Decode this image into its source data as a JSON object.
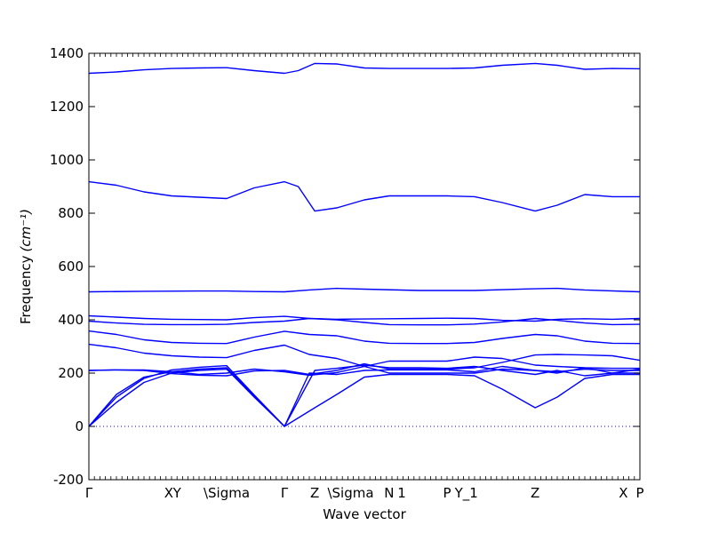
{
  "chart_data": {
    "type": "line",
    "title": "",
    "xlabel": "Wave vector",
    "ylabel": "Frequency",
    "ylabel_unit": "(cm⁻¹)",
    "ylim": [
      -200,
      1400
    ],
    "yticks": [
      -200,
      0,
      200,
      400,
      600,
      800,
      1000,
      1200,
      1400
    ],
    "grid": false,
    "legend": "none",
    "zero_line": {
      "value": 0,
      "style": "dotted",
      "color": "#0000ff"
    },
    "line_color": "#0000ff",
    "x_path_length": 10,
    "high_symmetry_points": [
      {
        "label": "Γ",
        "x": 0
      },
      {
        "label": "X",
        "x": 1.45
      },
      {
        "label": "Y",
        "x": 1.6
      },
      {
        "label": "\\Sigma",
        "x": 2.5
      },
      {
        "label": "Γ",
        "x": 3.55
      },
      {
        "label": "Z",
        "x": 4.1
      },
      {
        "label": "\\Sigma",
        "x": 4.75
      },
      {
        "label": "N",
        "x": 5.45
      },
      {
        "label": "1",
        "x": 5.6
      },
      {
        "label": "P",
        "x": 6.5
      },
      {
        "label": "Y_1",
        "x": 6.85
      },
      {
        "label": "Z",
        "x": 8.1
      },
      {
        "label": "X",
        "x": 9.7
      },
      {
        "label": "P",
        "x": 10
      }
    ],
    "series": [
      {
        "x": [
          0,
          0.5,
          1,
          1.5,
          2,
          2.5,
          3,
          3.55,
          3.8,
          4.1,
          4.5,
          5,
          5.45,
          6,
          6.5,
          7,
          7.5,
          8.1,
          8.5,
          9,
          9.5,
          10
        ],
        "values": [
          1325,
          1330,
          1338,
          1343,
          1345,
          1346,
          1335,
          1325,
          1335,
          1362,
          1360,
          1345,
          1343,
          1343,
          1343,
          1345,
          1355,
          1362,
          1355,
          1340,
          1343,
          1342
        ]
      },
      {
        "x": [
          0,
          0.5,
          1,
          1.5,
          2,
          2.5,
          3,
          3.55,
          3.8,
          4.1,
          4.5,
          5,
          5.45,
          6,
          6.5,
          7,
          7.5,
          8.1,
          8.5,
          9,
          9.5,
          10
        ],
        "values": [
          918,
          905,
          880,
          865,
          860,
          855,
          895,
          918,
          900,
          808,
          820,
          850,
          865,
          865,
          865,
          862,
          840,
          808,
          830,
          870,
          862,
          862
        ]
      },
      {
        "x": [
          0,
          1,
          2,
          2.5,
          3,
          3.55,
          4,
          4.5,
          5,
          6,
          7,
          8,
          8.5,
          9,
          10
        ],
        "values": [
          505,
          507,
          508,
          508,
          506,
          505,
          512,
          518,
          515,
          510,
          510,
          516,
          518,
          512,
          505
        ]
      },
      {
        "x": [
          0,
          0.5,
          1,
          1.5,
          2,
          2.5,
          3,
          3.55,
          4,
          4.5,
          5,
          5.45,
          6,
          6.5,
          7,
          7.5,
          8.1,
          8.5,
          9,
          9.5,
          10
        ],
        "values": [
          415,
          410,
          405,
          402,
          401,
          400,
          408,
          413,
          405,
          402,
          403,
          404,
          405,
          406,
          405,
          398,
          395,
          402,
          404,
          402,
          405
        ]
      },
      {
        "x": [
          0,
          0.5,
          1,
          1.5,
          2,
          2.5,
          3,
          3.55,
          4,
          4.5,
          5,
          5.45,
          6,
          6.5,
          7,
          7.5,
          8.1,
          8.5,
          9,
          9.5,
          10
        ],
        "values": [
          395,
          388,
          383,
          382,
          382,
          383,
          390,
          395,
          405,
          400,
          390,
          382,
          381,
          381,
          384,
          392,
          405,
          398,
          388,
          382,
          383
        ]
      },
      {
        "x": [
          0,
          0.5,
          1,
          1.5,
          2,
          2.5,
          3,
          3.55,
          4,
          4.5,
          5,
          5.45,
          6,
          6.5,
          7,
          7.5,
          8.1,
          8.5,
          9,
          9.5,
          10
        ],
        "values": [
          358,
          345,
          325,
          315,
          312,
          311,
          335,
          357,
          345,
          340,
          320,
          312,
          311,
          311,
          315,
          330,
          345,
          340,
          320,
          312,
          311
        ]
      },
      {
        "x": [
          0,
          0.5,
          1,
          1.5,
          2,
          2.5,
          3,
          3.55,
          4,
          4.5,
          5,
          5.45,
          6,
          6.5,
          7,
          7.5,
          8.1,
          8.5,
          9,
          9.5,
          10
        ],
        "values": [
          308,
          295,
          275,
          265,
          260,
          258,
          285,
          305,
          270,
          255,
          225,
          245,
          245,
          245,
          260,
          255,
          230,
          225,
          220,
          218,
          218
        ]
      },
      {
        "x": [
          0,
          0.5,
          1,
          1.5,
          2,
          2.5,
          3,
          3.55,
          4,
          4.5,
          5,
          5.45,
          6,
          6.5,
          7,
          7.5,
          8.1,
          8.5,
          9,
          9.5,
          10
        ],
        "values": [
          210,
          212,
          210,
          198,
          192,
          190,
          208,
          210,
          195,
          210,
          235,
          215,
          215,
          215,
          220,
          240,
          268,
          270,
          268,
          265,
          248
        ]
      },
      {
        "x": [
          0,
          0.5,
          1,
          1.5,
          2,
          2.5,
          3,
          3.55,
          4,
          4.5,
          5,
          5.45,
          6,
          6.5,
          7,
          7.5,
          8.1,
          8.5,
          9,
          9.5,
          10
        ],
        "values": [
          210,
          212,
          212,
          205,
          195,
          200,
          215,
          205,
          192,
          202,
          225,
          200,
          200,
          200,
          200,
          215,
          210,
          200,
          220,
          200,
          200
        ]
      },
      {
        "x": [
          0,
          0.5,
          1,
          1.5,
          2,
          2.5,
          3,
          3.55,
          4.1,
          4.5,
          5,
          5.45,
          6,
          6.5,
          7,
          7.5,
          8.1,
          8.5,
          9,
          9.5,
          10
        ],
        "values": [
          0,
          110,
          180,
          212,
          222,
          228,
          118,
          0,
          210,
          218,
          230,
          220,
          220,
          218,
          225,
          210,
          195,
          210,
          190,
          200,
          215
        ]
      },
      {
        "x": [
          0,
          0.5,
          1,
          1.5,
          2,
          2.5,
          3,
          3.55,
          4.1,
          4.5,
          5,
          5.45,
          6,
          6.5,
          7,
          7.5,
          8.1,
          8.5,
          9,
          9.5,
          10
        ],
        "values": [
          0,
          90,
          165,
          200,
          210,
          215,
          110,
          0,
          70,
          120,
          185,
          195,
          195,
          195,
          190,
          140,
          70,
          110,
          180,
          195,
          195
        ]
      },
      {
        "x": [
          0,
          0.5,
          1,
          1.5,
          2,
          2.5,
          3,
          3.55,
          4,
          4.5,
          5,
          5.45,
          6,
          6.5,
          7,
          7.5,
          8.1,
          8.5,
          9,
          9.5,
          10
        ],
        "values": [
          0,
          120,
          185,
          205,
          215,
          220,
          115,
          0,
          200,
          195,
          210,
          212,
          212,
          212,
          205,
          225,
          210,
          205,
          215,
          210,
          210
        ]
      }
    ]
  }
}
